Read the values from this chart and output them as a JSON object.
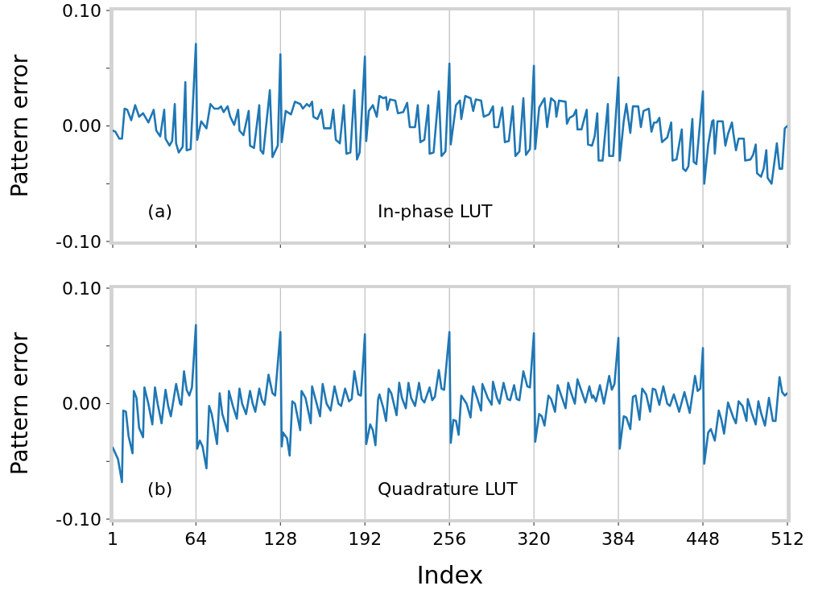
{
  "chart_data": [
    {
      "type": "line",
      "ylabel": "Pattern error",
      "annotations": [
        "(a)",
        "In-phase LUT"
      ],
      "grid": "x",
      "tick_labels": "y",
      "xlim": [
        1,
        512
      ],
      "xticks": [
        {
          "value": 1,
          "label": null
        },
        {
          "value": 64,
          "label": null
        },
        {
          "value": 128,
          "label": null
        },
        {
          "value": 192,
          "label": null
        },
        {
          "value": 256,
          "label": null
        },
        {
          "value": 320,
          "label": null
        },
        {
          "value": 384,
          "label": null
        },
        {
          "value": 448,
          "label": null
        },
        {
          "value": 512,
          "label": null
        }
      ],
      "ylim": [
        -0.1,
        0.1
      ],
      "yticks": [
        {
          "value": -0.1,
          "label": "-0.10"
        },
        {
          "value": -0.05,
          "label": null
        },
        {
          "value": 0,
          "label": "0.00"
        },
        {
          "value": 0.05,
          "label": null
        },
        {
          "value": 0.1,
          "label": "0.10"
        }
      ],
      "x": [
        1,
        3,
        6,
        8,
        10,
        12,
        15,
        18,
        21,
        24,
        28,
        32,
        34,
        37,
        40,
        41,
        44,
        46,
        48,
        49,
        51,
        54,
        56,
        57,
        60,
        64,
        65,
        68,
        72,
        75,
        78,
        81,
        83,
        85,
        88,
        90,
        93,
        96,
        97,
        100,
        104,
        105,
        108,
        112,
        113,
        115,
        120,
        122,
        126,
        128,
        129,
        132,
        136,
        139,
        143,
        145,
        148,
        150,
        152,
        153,
        156,
        159,
        161,
        166,
        168,
        170,
        173,
        176,
        178,
        181,
        184,
        186,
        188,
        192,
        193,
        195,
        198,
        201,
        203,
        206,
        208,
        209,
        211,
        215,
        217,
        221,
        224,
        226,
        230,
        232,
        234,
        237,
        240,
        241,
        244,
        248,
        250,
        253,
        256,
        257,
        261,
        264,
        265,
        268,
        272,
        274,
        276,
        280,
        282,
        286,
        289,
        290,
        293,
        296,
        298,
        301,
        304,
        306,
        309,
        312,
        314,
        317,
        320,
        321,
        324,
        328,
        330,
        333,
        336,
        337,
        339,
        344,
        345,
        347,
        350,
        352,
        353,
        356,
        360,
        361,
        364,
        366,
        368,
        369,
        372,
        376,
        377,
        380,
        384,
        385,
        388,
        390,
        393,
        395,
        399,
        401,
        403,
        407,
        409,
        411,
        413,
        415,
        417,
        421,
        424,
        425,
        428,
        432,
        433,
        435,
        437,
        440,
        441,
        443,
        448,
        449,
        452,
        455,
        456,
        457,
        459,
        463,
        465,
        467,
        470,
        471,
        473,
        475,
        479,
        480,
        484,
        486,
        488,
        489,
        492,
        494,
        496,
        497,
        500,
        504,
        506,
        508,
        510,
        512
      ],
      "series": [
        {
          "color": "#1f77b4",
          "values": [
            -0.004,
            -0.005,
            -0.011,
            -0.011,
            0.015,
            0.014,
            0.005,
            0.018,
            0.008,
            0.011,
            0.003,
            0.014,
            -0.004,
            -0.009,
            0.014,
            -0.011,
            -0.017,
            -0.013,
            0.019,
            -0.015,
            -0.023,
            -0.018,
            0.038,
            -0.021,
            -0.02,
            0.071,
            -0.012,
            0.004,
            -0.002,
            0.019,
            0.015,
            0.015,
            0.017,
            0.012,
            0.017,
            0.008,
            0.001,
            0.014,
            -0.004,
            -0.008,
            0.013,
            -0.017,
            -0.019,
            0.018,
            -0.021,
            -0.024,
            0.031,
            -0.027,
            -0.017,
            0.062,
            -0.014,
            0.013,
            0.01,
            0.021,
            0.019,
            0.015,
            0.019,
            0.017,
            0.021,
            0.008,
            0.006,
            0.014,
            -0.002,
            -0.002,
            0.014,
            -0.012,
            -0.015,
            0.018,
            -0.024,
            -0.023,
            0.031,
            -0.029,
            -0.023,
            0.06,
            -0.013,
            0.013,
            0.018,
            0.008,
            0.026,
            0.024,
            0.025,
            0.014,
            0.023,
            0.022,
            0.011,
            0.012,
            0.02,
            -0.001,
            -0.001,
            0.018,
            -0.014,
            -0.012,
            0.018,
            -0.024,
            -0.023,
            0.03,
            -0.026,
            -0.022,
            0.054,
            -0.016,
            0.018,
            0.022,
            0.006,
            0.026,
            0.024,
            0.013,
            0.023,
            0.022,
            0.008,
            0.01,
            0.017,
            -0.001,
            -0.001,
            0.016,
            -0.014,
            -0.013,
            0.017,
            -0.026,
            -0.022,
            0.024,
            -0.025,
            -0.02,
            0.052,
            -0.02,
            0.016,
            0.024,
            -0.001,
            0.024,
            0.021,
            0.008,
            0.022,
            0.021,
            0.002,
            0.007,
            0.009,
            0.014,
            -0.003,
            -0.003,
            0.014,
            -0.016,
            -0.017,
            -0.009,
            0.011,
            -0.03,
            -0.03,
            0.019,
            -0.026,
            -0.026,
            0.042,
            -0.03,
            0.004,
            0.019,
            -0.006,
            0.017,
            0.017,
            -0.001,
            0.013,
            0.015,
            -0.005,
            0.003,
            0.003,
            0.007,
            -0.014,
            -0.01,
            0.003,
            -0.03,
            -0.029,
            -0.003,
            -0.037,
            -0.039,
            -0.035,
            0.006,
            -0.031,
            -0.033,
            0.03,
            -0.05,
            -0.016,
            0.004,
            0.005,
            -0.024,
            0.004,
            0.004,
            -0.017,
            -0.007,
            0.003,
            -0.006,
            -0.021,
            -0.011,
            -0.011,
            -0.03,
            -0.029,
            -0.025,
            -0.016,
            -0.041,
            -0.044,
            -0.037,
            -0.021,
            -0.045,
            -0.05,
            -0.015,
            -0.037,
            -0.037,
            -0.002,
            0
          ]
        }
      ]
    },
    {
      "type": "line",
      "ylabel": "Pattern error",
      "xlabel": "Index",
      "annotations": [
        "(b)",
        "Quadrature LUT"
      ],
      "grid": "x",
      "xlim": [
        1,
        512
      ],
      "xticks": [
        {
          "value": 1,
          "label": "1"
        },
        {
          "value": 64,
          "label": "64"
        },
        {
          "value": 128,
          "label": "128"
        },
        {
          "value": 192,
          "label": "192"
        },
        {
          "value": 256,
          "label": "256"
        },
        {
          "value": 320,
          "label": "320"
        },
        {
          "value": 384,
          "label": "384"
        },
        {
          "value": 448,
          "label": "448"
        },
        {
          "value": 512,
          "label": "512"
        }
      ],
      "ylim": [
        -0.1,
        0.1
      ],
      "yticks": [
        {
          "value": -0.1,
          "label": "-0.10"
        },
        {
          "value": -0.05,
          "label": null
        },
        {
          "value": 0,
          "label": "0.00"
        },
        {
          "value": 0.05,
          "label": null
        },
        {
          "value": 0.1,
          "label": "0.10"
        }
      ],
      "x": [
        1,
        5,
        8,
        9,
        11,
        13,
        16,
        17,
        19,
        21,
        24,
        25,
        28,
        31,
        33,
        35,
        38,
        41,
        43,
        45,
        49,
        52,
        53,
        55,
        57,
        59,
        61,
        64,
        65,
        67,
        69,
        72,
        74,
        76,
        80,
        82,
        84,
        88,
        89,
        92,
        95,
        97,
        99,
        102,
        105,
        107,
        109,
        112,
        114,
        116,
        119,
        122,
        124,
        128,
        129,
        130,
        133,
        135,
        137,
        139,
        143,
        144,
        147,
        151,
        152,
        155,
        158,
        160,
        163,
        166,
        169,
        172,
        174,
        177,
        180,
        182,
        184,
        187,
        189,
        192,
        193,
        196,
        198,
        200,
        202,
        203,
        206,
        208,
        210,
        212,
        216,
        218,
        220,
        223,
        225,
        227,
        230,
        233,
        235,
        237,
        241,
        243,
        245,
        248,
        250,
        252,
        256,
        257,
        259,
        261,
        263,
        265,
        269,
        272,
        274,
        277,
        280,
        281,
        285,
        288,
        289,
        292,
        294,
        297,
        300,
        302,
        305,
        307,
        309,
        312,
        315,
        317,
        320,
        321,
        324,
        326,
        328,
        331,
        333,
        336,
        338,
        341,
        344,
        346,
        348,
        351,
        353,
        356,
        359,
        362,
        364,
        365,
        367,
        370,
        373,
        377,
        379,
        381,
        384,
        385,
        388,
        390,
        393,
        395,
        397,
        400,
        402,
        405,
        408,
        410,
        412,
        415,
        418,
        421,
        423,
        426,
        430,
        434,
        438,
        442,
        444,
        446,
        448,
        449,
        452,
        454,
        457,
        460,
        462,
        464,
        467,
        471,
        473,
        475,
        478,
        481,
        482,
        485,
        488,
        490,
        492,
        495,
        498,
        501,
        503,
        506,
        508,
        510,
        512
      ],
      "series": [
        {
          "color": "#1f77b4",
          "values": [
            -0.038,
            -0.048,
            -0.068,
            -0.006,
            -0.007,
            -0.028,
            -0.043,
            0.011,
            0.005,
            -0.021,
            -0.029,
            0.014,
            0,
            -0.018,
            0.014,
            0,
            -0.017,
            0.012,
            -0.002,
            -0.011,
            0.017,
            0,
            -0.001,
            0.028,
            0.012,
            0.007,
            0.014,
            0.068,
            -0.039,
            -0.032,
            -0.037,
            -0.056,
            -0.002,
            -0.009,
            -0.035,
            0.009,
            -0.009,
            -0.024,
            0.011,
            -0.002,
            -0.013,
            0.013,
            0,
            -0.009,
            0.011,
            0,
            -0.007,
            0.013,
            0.003,
            -0.001,
            0.025,
            0.009,
            0.007,
            0.062,
            -0.037,
            -0.025,
            -0.03,
            -0.045,
            0.002,
            0,
            -0.023,
            0.011,
            0.005,
            -0.017,
            0.015,
            0.002,
            -0.011,
            0.017,
            0,
            -0.006,
            0.015,
            0,
            -0.002,
            0.013,
            0.002,
            0.004,
            0.028,
            0.008,
            0.007,
            0.06,
            -0.035,
            -0.018,
            -0.023,
            -0.036,
            0.004,
            0.008,
            -0.004,
            -0.015,
            0.013,
            0.009,
            -0.01,
            0.018,
            0.005,
            -0.004,
            0.018,
            0.005,
            -0.002,
            0.018,
            0.004,
            0.001,
            0.014,
            0.003,
            0.006,
            0.029,
            0.013,
            0.012,
            0.062,
            -0.034,
            -0.014,
            -0.015,
            -0.027,
            0.007,
            0,
            -0.012,
            0.015,
            0.005,
            -0.006,
            0.017,
            0.005,
            -0.001,
            0.019,
            0.005,
            0,
            0.018,
            0.004,
            0.003,
            0.016,
            0.004,
            0.003,
            0.028,
            0.015,
            0.014,
            0.061,
            -0.033,
            -0.009,
            -0.011,
            -0.019,
            0.007,
            0.004,
            -0.007,
            0.016,
            0.006,
            -0.004,
            0.018,
            0.01,
            0,
            0.021,
            0.011,
            0.001,
            0.015,
            0.005,
            0.007,
            0.002,
            0.016,
            0,
            0.024,
            0.012,
            0.017,
            0.057,
            -0.039,
            -0.011,
            -0.012,
            -0.022,
            0.006,
            0.007,
            -0.014,
            0.013,
            0.008,
            -0.007,
            0.013,
            0.012,
            -0.001,
            0.015,
            0,
            -0.002,
            0.008,
            -0.007,
            0.01,
            -0.008,
            0.024,
            0.011,
            0.013,
            0.048,
            -0.052,
            -0.025,
            -0.022,
            -0.032,
            -0.006,
            -0.014,
            -0.026,
            0.001,
            -0.012,
            -0.017,
            0.002,
            -0.002,
            -0.015,
            0.004,
            -0.008,
            -0.018,
            0.002,
            -0.008,
            -0.019,
            0.005,
            -0.015,
            -0.015,
            0.023,
            0.01,
            0.007,
            0.009
          ]
        }
      ]
    }
  ]
}
